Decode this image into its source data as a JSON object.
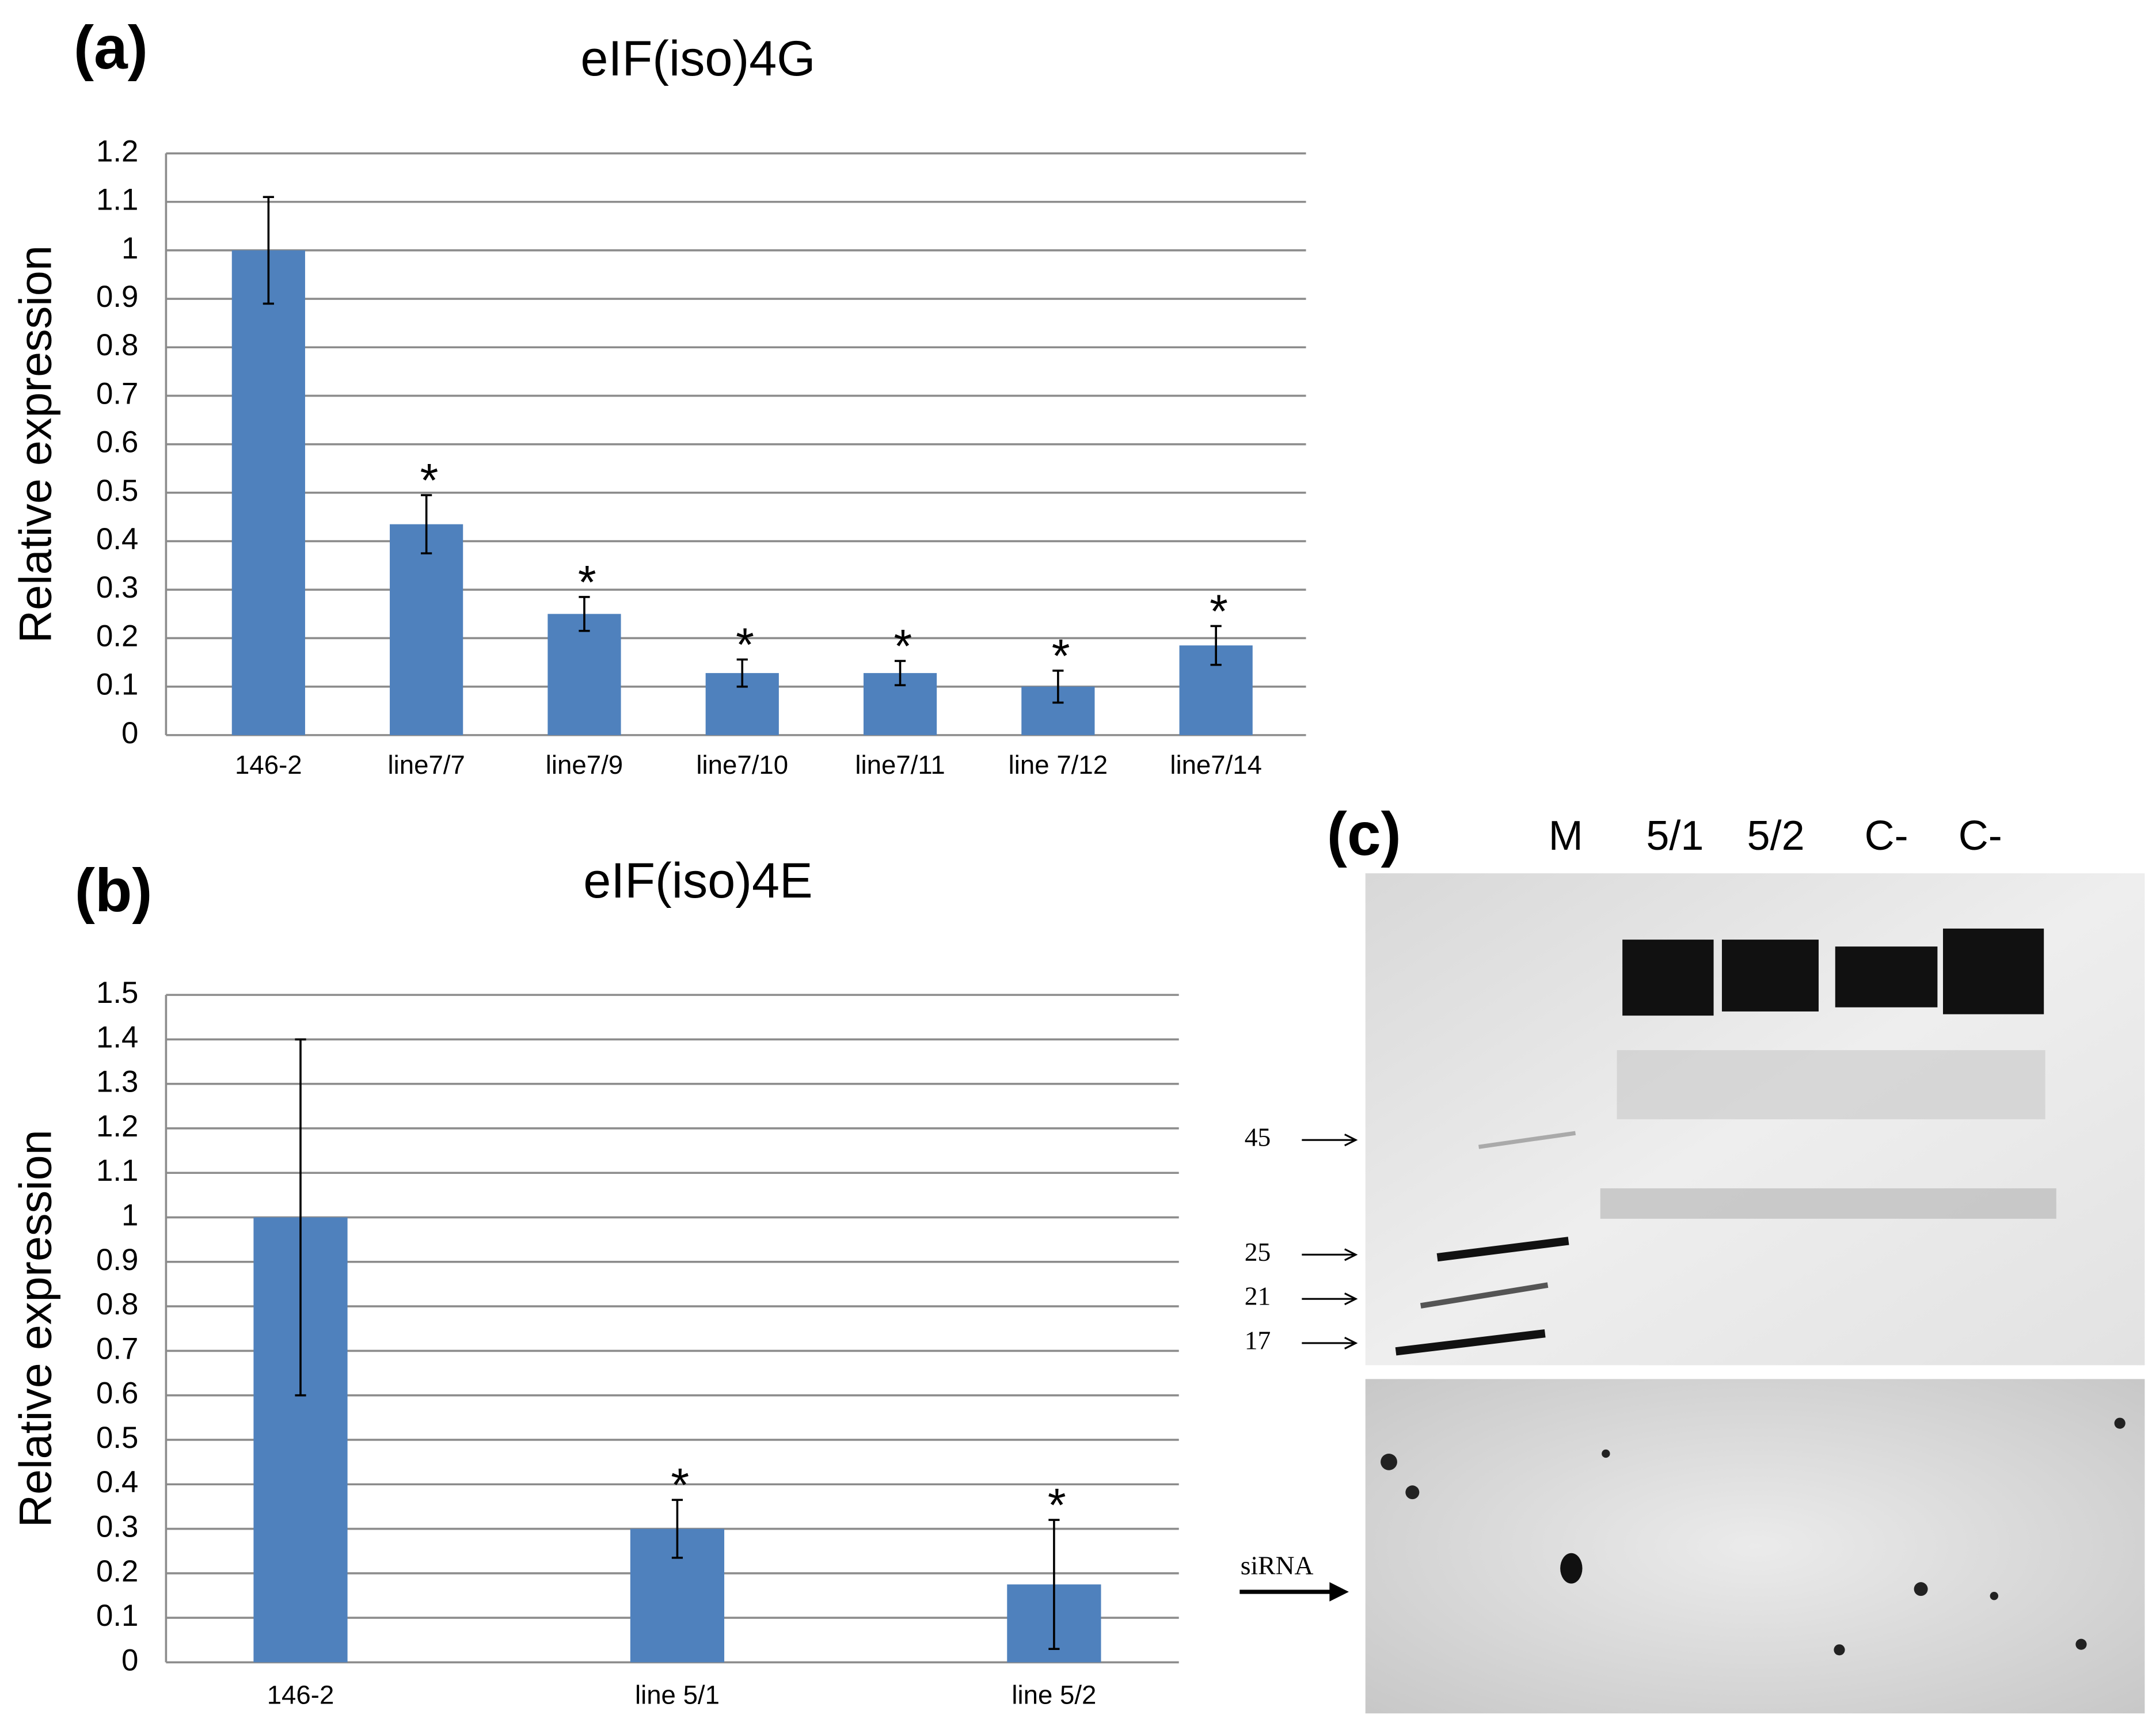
{
  "chart_data": [
    {
      "type": "bar",
      "panel": "(a)",
      "title": "eIF(iso)4G",
      "y_label": "Relative expression",
      "categories": [
        "146-2",
        "line7/7",
        "line7/9",
        "line7/10",
        "line7/11",
        "line 7/12",
        "line7/14"
      ],
      "values": [
        1.0,
        0.435,
        0.25,
        0.128,
        0.128,
        0.1,
        0.185
      ],
      "errors": [
        0.11,
        0.06,
        0.035,
        0.028,
        0.025,
        0.033,
        0.04
      ],
      "significance": [
        null,
        "*",
        "*",
        "*",
        "*",
        "*",
        "*"
      ],
      "color": "#4f81bd",
      "ylim": [
        0,
        1.2
      ],
      "yticks": [
        0,
        0.1,
        0.2,
        0.3,
        0.4,
        0.5,
        0.6,
        0.7,
        0.8,
        0.9,
        1,
        1.1,
        1.2
      ],
      "grid": true
    },
    {
      "type": "bar",
      "panel": "(b)",
      "title": "eIF(iso)4E",
      "y_label": "Relative expression",
      "categories": [
        "146-2",
        "line 5/1",
        "line 5/2"
      ],
      "values": [
        1.0,
        0.3,
        0.175
      ],
      "errors": [
        0.4,
        0.065,
        0.145
      ],
      "significance": [
        null,
        "*",
        "*"
      ],
      "color": "#4f81bd",
      "ylim": [
        0,
        1.5
      ],
      "yticks": [
        0,
        0.1,
        0.2,
        0.3,
        0.4,
        0.5,
        0.6,
        0.7,
        0.8,
        0.9,
        1,
        1.1,
        1.2,
        1.3,
        1.4,
        1.5
      ],
      "grid": true
    }
  ],
  "gel": {
    "panel": "(c)",
    "lanes": [
      "M",
      "5/1",
      "5/2",
      "C-",
      "C-"
    ],
    "markers": [
      "45",
      "25",
      "21",
      "17"
    ],
    "probe": "siRNA"
  }
}
